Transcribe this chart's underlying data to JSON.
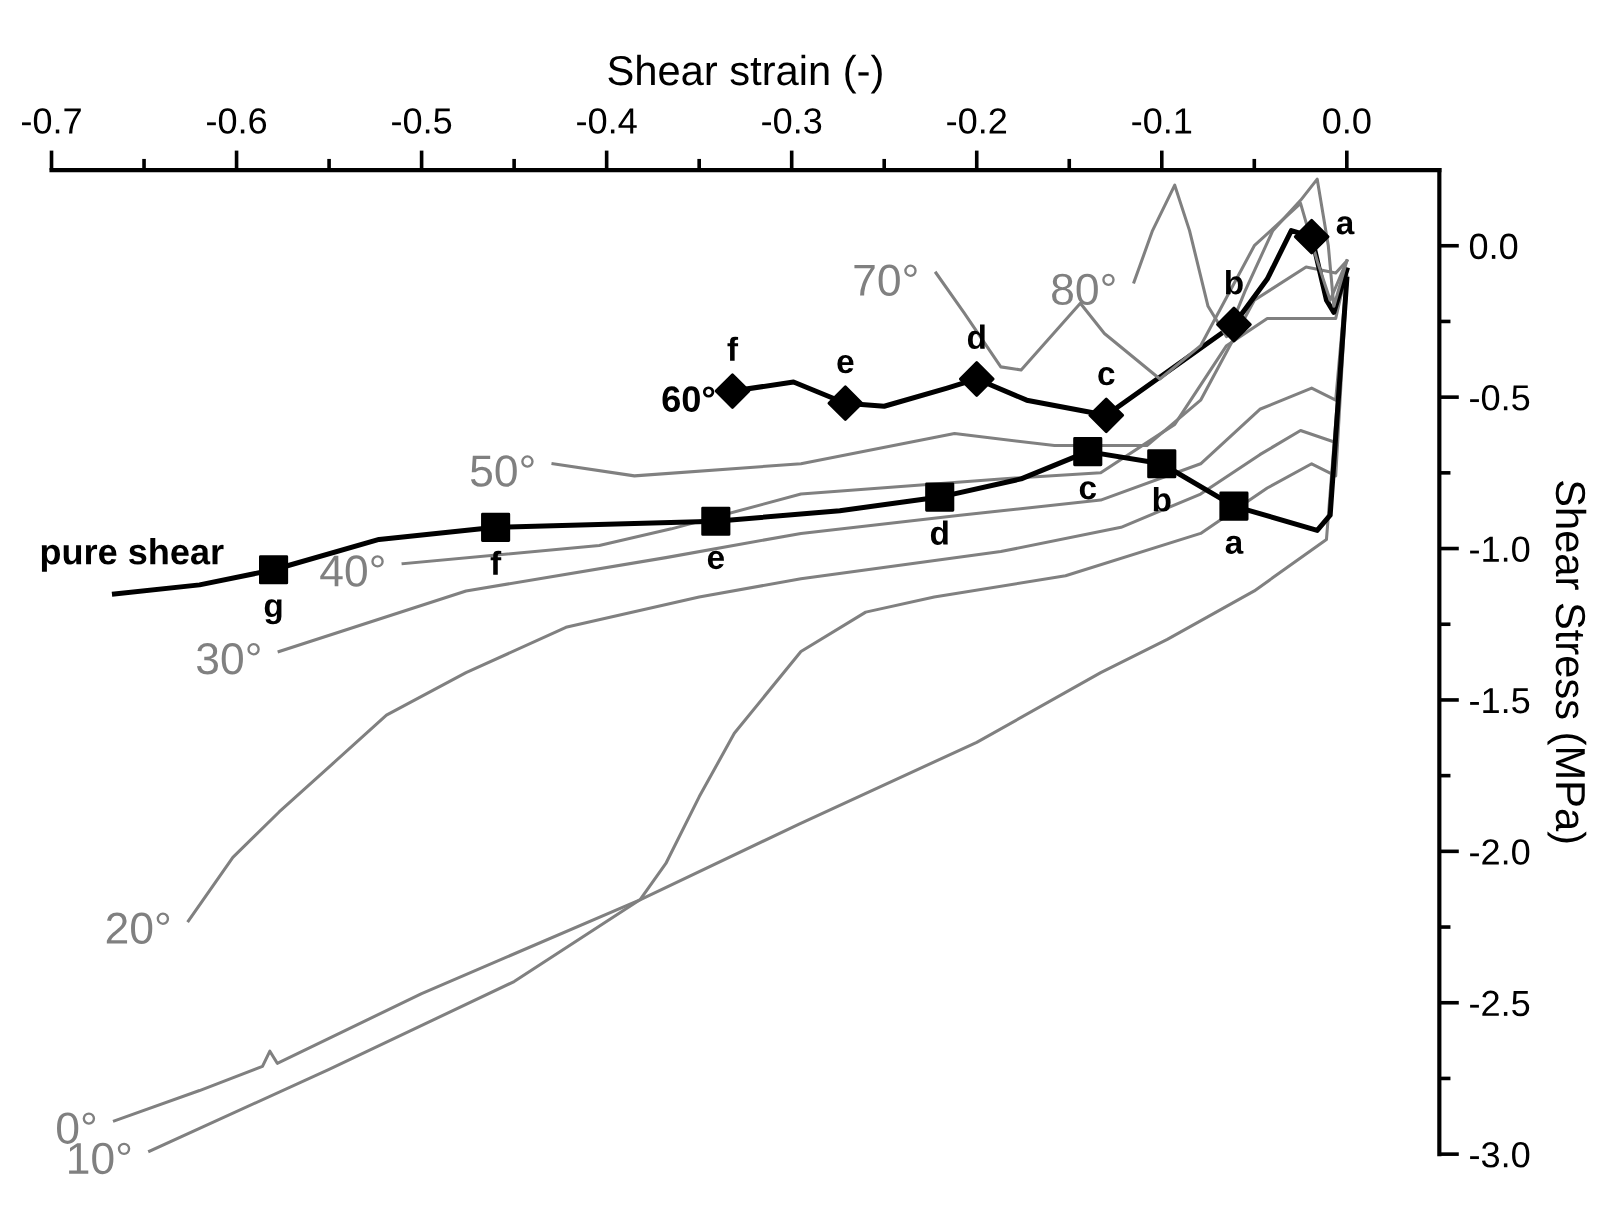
{
  "chart_data": {
    "type": "line",
    "xlabel": "Shear strain (-)",
    "ylabel": "Shear Stress (MPa)",
    "xlim": [
      -0.7,
      0.05
    ],
    "ylim": [
      -3.0,
      0.25
    ],
    "xticks": [
      -0.7,
      -0.6,
      -0.5,
      -0.4,
      -0.3,
      -0.2,
      -0.1,
      {
        "value": 0,
        "label": "0.0"
      }
    ],
    "yticks": [
      {
        "value": 0,
        "label": "0.0"
      },
      -0.5,
      {
        "value": -1,
        "label": "-1.0"
      },
      -1.5,
      {
        "value": -2,
        "label": "-2.0"
      },
      -2.5,
      {
        "value": -3,
        "label": "-3.0"
      }
    ],
    "grid": false,
    "legend": false,
    "series": [
      {
        "name": "0°",
        "color": "#808080",
        "x": [
          -0.666,
          -0.62,
          -0.586,
          -0.582,
          -0.578,
          -0.5,
          -0.382,
          -0.296,
          -0.2,
          -0.133,
          -0.097,
          -0.05,
          -0.011,
          0.0
        ],
        "values": [
          -2.89,
          -2.79,
          -2.71,
          -2.66,
          -2.7,
          -2.47,
          -2.16,
          -1.91,
          -1.64,
          -1.41,
          -1.3,
          -1.14,
          -0.97,
          -0.12
        ]
      },
      {
        "name": "10°",
        "color": "#808080",
        "x": [
          -0.647,
          -0.55,
          -0.45,
          -0.382,
          -0.368,
          -0.35,
          -0.331,
          -0.295,
          -0.26,
          -0.223,
          -0.152,
          -0.079,
          -0.043,
          -0.019,
          -0.006,
          0.0
        ],
        "values": [
          -2.99,
          -2.72,
          -2.43,
          -2.16,
          -2.04,
          -1.82,
          -1.61,
          -1.34,
          -1.21,
          -1.16,
          -1.09,
          -0.95,
          -0.8,
          -0.72,
          -0.76,
          -0.12
        ]
      },
      {
        "name": "20°",
        "color": "#808080",
        "x": [
          -0.626,
          -0.602,
          -0.577,
          -0.548,
          -0.519,
          -0.476,
          -0.422,
          -0.35,
          -0.295,
          -0.187,
          -0.122,
          -0.079,
          -0.047,
          -0.025,
          -0.006,
          0.0
        ],
        "values": [
          -2.23,
          -2.02,
          -1.87,
          -1.71,
          -1.55,
          -1.41,
          -1.26,
          -1.16,
          -1.1,
          -1.01,
          -0.93,
          -0.82,
          -0.69,
          -0.61,
          -0.65,
          -0.12
        ]
      },
      {
        "name": "30°",
        "color": "#808080",
        "x": [
          -0.577,
          -0.476,
          -0.368,
          -0.295,
          -0.209,
          -0.133,
          -0.079,
          -0.047,
          -0.019,
          -0.006,
          0.0
        ],
        "values": [
          -1.34,
          -1.14,
          -1.03,
          -0.95,
          -0.89,
          -0.84,
          -0.72,
          -0.54,
          -0.47,
          -0.51,
          -0.1
        ]
      },
      {
        "name": "40°",
        "color": "#808080",
        "x": [
          -0.51,
          -0.404,
          -0.365,
          -0.295,
          -0.187,
          -0.133,
          -0.093,
          -0.065,
          -0.043,
          -0.006,
          0.0
        ],
        "values": [
          -1.05,
          -0.99,
          -0.935,
          -0.82,
          -0.77,
          -0.75,
          -0.59,
          -0.33,
          -0.24,
          -0.24,
          -0.08
        ]
      },
      {
        "name": "50°",
        "color": "#808080",
        "x": [
          -0.429,
          -0.385,
          -0.295,
          -0.212,
          -0.158,
          -0.108,
          -0.079,
          -0.05,
          -0.022,
          -0.006,
          0.0
        ],
        "values": [
          -0.72,
          -0.76,
          -0.72,
          -0.62,
          -0.66,
          -0.66,
          -0.51,
          -0.18,
          -0.07,
          -0.09,
          -0.05
        ]
      },
      {
        "name": "60°",
        "color": "#000000",
        "x": [
          -0.332,
          -0.299,
          -0.271,
          -0.25,
          -0.216,
          -0.2,
          -0.173,
          -0.13,
          -0.061,
          -0.043,
          -0.03,
          -0.019,
          -0.011,
          -0.007,
          0.0
        ],
        "values": [
          -0.48,
          -0.45,
          -0.52,
          -0.53,
          -0.47,
          -0.44,
          -0.51,
          -0.56,
          -0.26,
          -0.11,
          0.05,
          0.03,
          -0.18,
          -0.22,
          -0.08
        ]
      },
      {
        "name": "70°",
        "color": "#808080",
        "x": [
          -0.222,
          -0.207,
          -0.187,
          -0.176,
          -0.144,
          -0.131,
          -0.101,
          -0.079,
          -0.05,
          -0.025,
          -0.016,
          -0.009,
          0.0
        ],
        "values": [
          -0.09,
          -0.22,
          -0.4,
          -0.41,
          -0.19,
          -0.29,
          -0.44,
          -0.33,
          0.0,
          0.14,
          -0.05,
          -0.18,
          -0.05
        ]
      },
      {
        "name": "80°",
        "color": "#808080",
        "x": [
          -0.115,
          -0.105,
          -0.093,
          -0.085,
          -0.075,
          -0.065,
          -0.055,
          -0.04,
          -0.025,
          -0.016,
          -0.01,
          -0.007,
          0.0
        ],
        "values": [
          -0.12,
          0.05,
          0.2,
          0.05,
          -0.2,
          -0.3,
          -0.15,
          0.05,
          0.15,
          0.22,
          0.0,
          -0.2,
          -0.05
        ]
      },
      {
        "name": "pure shear",
        "color": "#000000",
        "x": [
          -0.666,
          -0.62,
          -0.58,
          -0.523,
          -0.46,
          -0.341,
          -0.274,
          -0.22,
          -0.176,
          -0.14,
          -0.1,
          -0.061,
          -0.016,
          -0.009,
          0.0
        ],
        "values": [
          -1.15,
          -1.12,
          -1.07,
          -0.97,
          -0.93,
          -0.91,
          -0.875,
          -0.83,
          -0.77,
          -0.68,
          -0.72,
          -0.86,
          -0.94,
          -0.89,
          -0.11
        ]
      },
      {
        "type": "scatter",
        "marker": "square",
        "color": "#000000",
        "x": [
          -0.061,
          -0.1,
          -0.14,
          -0.22,
          -0.341,
          -0.46,
          -0.58
        ],
        "values": [
          -0.86,
          -0.72,
          -0.68,
          -0.83,
          -0.91,
          -0.93,
          -1.07
        ]
      },
      {
        "type": "scatter",
        "marker": "diamond",
        "color": "#000000",
        "x": [
          -0.019,
          -0.061,
          -0.13,
          -0.2,
          -0.271,
          -0.332
        ],
        "values": [
          0.03,
          -0.26,
          -0.56,
          -0.44,
          -0.52,
          -0.48
        ]
      }
    ],
    "annotations": [
      {
        "text": "a",
        "x": -0.061,
        "y": -0.86
      },
      {
        "text": "b",
        "x": -0.1,
        "y": -0.72
      },
      {
        "text": "c",
        "x": -0.14,
        "y": -0.68
      },
      {
        "text": "d",
        "x": -0.22,
        "y": -0.83
      },
      {
        "text": "e",
        "x": -0.341,
        "y": -0.91
      },
      {
        "text": "f",
        "x": -0.46,
        "y": -0.93
      },
      {
        "text": "g",
        "x": -0.58,
        "y": -1.07
      },
      {
        "text": "a",
        "x": -0.019,
        "y": 0.03
      },
      {
        "text": "b",
        "x": -0.061,
        "y": -0.26
      },
      {
        "text": "c",
        "x": -0.13,
        "y": -0.56
      },
      {
        "text": "d",
        "x": -0.2,
        "y": -0.44
      },
      {
        "text": "e",
        "x": -0.271,
        "y": -0.52
      },
      {
        "text": "f",
        "x": -0.332,
        "y": -0.48
      }
    ]
  }
}
